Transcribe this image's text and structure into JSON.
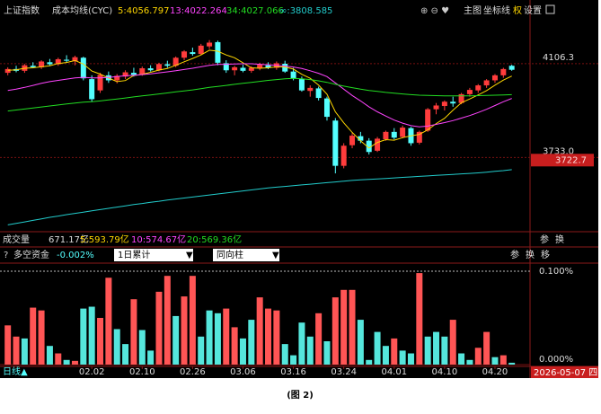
{
  "header": {
    "index_name": "上证指数",
    "indicator": "成本均线(CYC)",
    "toolbar": [
      "主图",
      "坐标线",
      "权",
      "设置"
    ]
  },
  "volume_row": {
    "title": "成交量",
    "total": "671.17亿",
    "ma": [
      "5:593.79亿",
      "10:574.67亿",
      "20:569.36亿"
    ],
    "icons": [
      "参",
      "换"
    ]
  },
  "sub_panel": {
    "title": "多空资金",
    "value": "-0.002%",
    "dropdown_1": "1日累计",
    "dropdown_2": "同向柱",
    "icons": [
      "参",
      "换",
      "移"
    ]
  },
  "footer": {
    "period": "日线▲",
    "cursor_date": "2026-05-07 四"
  },
  "caption": "(图 2)",
  "chart_data": [
    {
      "type": "candlestick",
      "up_color": "#ff3c3c",
      "down_color": "#54ffff",
      "open": [
        4070,
        4085,
        4078,
        4098,
        4092,
        4112,
        4104,
        4122,
        4116,
        4130,
        4045,
        4000,
        4060,
        4040,
        4055,
        4070,
        4062,
        4088,
        4080,
        4104,
        4098,
        4130,
        4152,
        4145,
        4175,
        4192,
        4108,
        4080,
        4090,
        4078,
        4088,
        4100,
        4090,
        4106,
        4075,
        4045,
        3998,
        4008,
        3968,
        3880,
        3700,
        3782,
        3818,
        3800,
        3760,
        3806,
        3835,
        3815,
        3850,
        3792,
        3840,
        3925,
        3938,
        3955,
        3950,
        3985,
        4000,
        4020,
        4040,
        4060,
        4098
      ],
      "high": [
        4092,
        4098,
        4105,
        4112,
        4120,
        4125,
        4130,
        4140,
        4138,
        4134,
        4060,
        4070,
        4075,
        4065,
        4080,
        4090,
        4095,
        4100,
        4110,
        4118,
        4135,
        4160,
        4170,
        4185,
        4200,
        4198,
        4120,
        4098,
        4102,
        4096,
        4110,
        4112,
        4115,
        4118,
        4090,
        4055,
        4020,
        4015,
        3975,
        3890,
        3790,
        3830,
        3835,
        3810,
        3815,
        3840,
        3850,
        3860,
        3855,
        3840,
        3930,
        3950,
        3960,
        3975,
        3990,
        4010,
        4025,
        4045,
        4065,
        4090,
        4102
      ],
      "low": [
        4060,
        4072,
        4070,
        4088,
        4085,
        4098,
        4098,
        4110,
        4100,
        4040,
        3955,
        3990,
        4030,
        4028,
        4045,
        4055,
        4058,
        4075,
        4076,
        4090,
        4092,
        4120,
        4138,
        4140,
        4165,
        4100,
        4070,
        4060,
        4072,
        4070,
        4080,
        4085,
        4082,
        4070,
        4040,
        3995,
        3975,
        3960,
        3880,
        3670,
        3690,
        3770,
        3790,
        3745,
        3755,
        3800,
        3805,
        3810,
        3780,
        3785,
        3835,
        3905,
        3920,
        3935,
        3945,
        3975,
        3990,
        4010,
        4030,
        4050,
        4078
      ],
      "close": [
        4085,
        4078,
        4100,
        4092,
        4115,
        4104,
        4124,
        4118,
        4132,
        4048,
        3965,
        4062,
        4040,
        4058,
        4072,
        4062,
        4088,
        4080,
        4105,
        4098,
        4130,
        4155,
        4145,
        4178,
        4190,
        4110,
        4080,
        4092,
        4078,
        4090,
        4102,
        4090,
        4108,
        4075,
        4048,
        4000,
        4010,
        3970,
        3895,
        3700,
        3780,
        3820,
        3800,
        3755,
        3808,
        3835,
        3812,
        3852,
        3790,
        3835,
        3925,
        3940,
        3955,
        3948,
        3985,
        4002,
        4020,
        4040,
        4060,
        4085,
        4082
      ],
      "series": [
        {
          "name": "5:4056.797",
          "color": "#ffd700",
          "values": [
            4080,
            4082,
            4088,
            4090,
            4094,
            4098,
            4107,
            4111,
            4119,
            4105,
            4077,
            4065,
            4049,
            4035,
            4039,
            4059,
            4064,
            4072,
            4081,
            4087,
            4100,
            4114,
            4127,
            4141,
            4160,
            4156,
            4141,
            4130,
            4110,
            4090,
            4088,
            4090,
            4094,
            4093,
            4085,
            4064,
            4048,
            4021,
            3985,
            3915,
            3871,
            3833,
            3799,
            3771,
            3793,
            3804,
            3802,
            3812,
            3819,
            3825,
            3843,
            3868,
            3889,
            3921,
            3951,
            3966,
            3982,
            3999,
            4021,
            4041,
            4057
          ]
        },
        {
          "name": "13:4022.264",
          "color": "#ff44ff",
          "values": [
            4000,
            4005,
            4012,
            4020,
            4028,
            4035,
            4040,
            4045,
            4050,
            4052,
            4050,
            4050,
            4052,
            4055,
            4058,
            4060,
            4063,
            4066,
            4070,
            4074,
            4078,
            4083,
            4088,
            4094,
            4100,
            4103,
            4104,
            4105,
            4106,
            4106,
            4104,
            4102,
            4100,
            4097,
            4093,
            4087,
            4078,
            4068,
            4055,
            4030,
            4005,
            3980,
            3958,
            3935,
            3915,
            3898,
            3882,
            3870,
            3860,
            3855,
            3858,
            3865,
            3872,
            3880,
            3890,
            3900,
            3912,
            3925,
            3940,
            3955,
            3968
          ]
        },
        {
          "name": "34:4027.066",
          "color": "#22dd22",
          "values": [
            3918,
            3922,
            3926,
            3930,
            3934,
            3938,
            3942,
            3946,
            3950,
            3953,
            3955,
            3958,
            3962,
            3966,
            3970,
            3974,
            3978,
            3982,
            3986,
            3990,
            3994,
            3998,
            4002,
            4007,
            4012,
            4016,
            4020,
            4024,
            4028,
            4032,
            4036,
            4040,
            4043,
            4046,
            4048,
            4046,
            4043,
            4038,
            4032,
            4024,
            4017,
            4011,
            4005,
            4000,
            3996,
            3992,
            3989,
            3986,
            3983,
            3981,
            3980,
            3979,
            3978,
            3978,
            3978,
            3978,
            3979,
            3980,
            3981,
            3982,
            3983
          ]
        },
        {
          "name": "∞:3808.585",
          "color": "#22cccc",
          "values": [
            3465,
            3471,
            3477,
            3483,
            3489,
            3495,
            3500,
            3506,
            3511,
            3516,
            3521,
            3526,
            3531,
            3536,
            3541,
            3546,
            3550,
            3555,
            3559,
            3564,
            3568,
            3572,
            3576,
            3580,
            3584,
            3588,
            3592,
            3596,
            3600,
            3604,
            3608,
            3612,
            3615,
            3618,
            3621,
            3624,
            3627,
            3630,
            3633,
            3636,
            3639,
            3642,
            3644,
            3646,
            3648,
            3650,
            3652,
            3654,
            3656,
            3658,
            3660,
            3662,
            3664,
            3666,
            3668,
            3670,
            3672,
            3675,
            3678,
            3681,
            3685
          ]
        }
      ],
      "ylim": [
        3438,
        4281
      ],
      "yticks": [
        4106.3,
        {
          "value": 3733,
          "label": "3733.0"
        }
      ],
      "grid": true,
      "price_tag": 3722.7
    },
    {
      "type": "bar",
      "categories": [
        null,
        null,
        null,
        null,
        null,
        null,
        null,
        null,
        null,
        null,
        "02.02",
        null,
        null,
        null,
        null,
        null,
        "02.10",
        null,
        null,
        null,
        null,
        null,
        "02.26",
        null,
        null,
        null,
        null,
        null,
        "03.06",
        null,
        null,
        null,
        null,
        null,
        "03.16",
        null,
        null,
        null,
        null,
        null,
        "03.24",
        null,
        null,
        null,
        null,
        null,
        "04.01",
        null,
        null,
        null,
        null,
        null,
        "04.10",
        null,
        null,
        null,
        null,
        null,
        "04.20",
        null,
        null
      ],
      "values": [
        0.042,
        0.03,
        0.028,
        0.061,
        0.058,
        0.02,
        0.012,
        0.005,
        0.004,
        0.06,
        0.062,
        0.05,
        0.093,
        0.038,
        0.022,
        0.07,
        0.037,
        0.015,
        0.078,
        0.095,
        0.052,
        0.073,
        0.095,
        0.03,
        0.058,
        0.055,
        0.06,
        0.04,
        0.028,
        0.048,
        0.072,
        0.06,
        0.058,
        0.022,
        0.01,
        0.045,
        0.03,
        0.055,
        0.025,
        0.072,
        0.08,
        0.08,
        0.048,
        0.005,
        0.035,
        0.02,
        0.028,
        0.015,
        0.012,
        0.098,
        0.03,
        0.035,
        0.03,
        0.048,
        0.012,
        0.005,
        0.018,
        0.035,
        0.008,
        0.01,
        0.002
      ],
      "colors": [
        "#ff5555",
        "#ff5555",
        "#55e6dc",
        "#ff5555",
        "#ff5555",
        "#55e6dc",
        "#ff5555",
        "#55e6dc",
        "#ff5555",
        "#55e6dc",
        "#55e6dc",
        "#ff5555",
        "#ff5555",
        "#55e6dc",
        "#55e6dc",
        "#ff5555",
        "#55e6dc",
        "#55e6dc",
        "#ff5555",
        "#ff5555",
        "#55e6dc",
        "#ff5555",
        "#ff5555",
        "#55e6dc",
        "#55e6dc",
        "#55e6dc",
        "#ff5555",
        "#ff5555",
        "#55e6dc",
        "#55e6dc",
        "#ff5555",
        "#ff5555",
        "#ff5555",
        "#55e6dc",
        "#55e6dc",
        "#55e6dc",
        "#55e6dc",
        "#ff5555",
        "#55e6dc",
        "#ff5555",
        "#ff5555",
        "#ff5555",
        "#55e6dc",
        "#55e6dc",
        "#55e6dc",
        "#55e6dc",
        "#ff5555",
        "#55e6dc",
        "#55e6dc",
        "#ff5555",
        "#55e6dc",
        "#55e6dc",
        "#55e6dc",
        "#ff5555",
        "#55e6dc",
        "#55e6dc",
        "#ff5555",
        "#ff5555",
        "#55e6dc",
        "#ff5555",
        "#55e6dc"
      ],
      "ylim": [
        0,
        0.1
      ],
      "yticks": [
        {
          "value": 0.1,
          "label": "0.100%"
        },
        {
          "value": 0,
          "label": "0.000%"
        }
      ]
    }
  ]
}
